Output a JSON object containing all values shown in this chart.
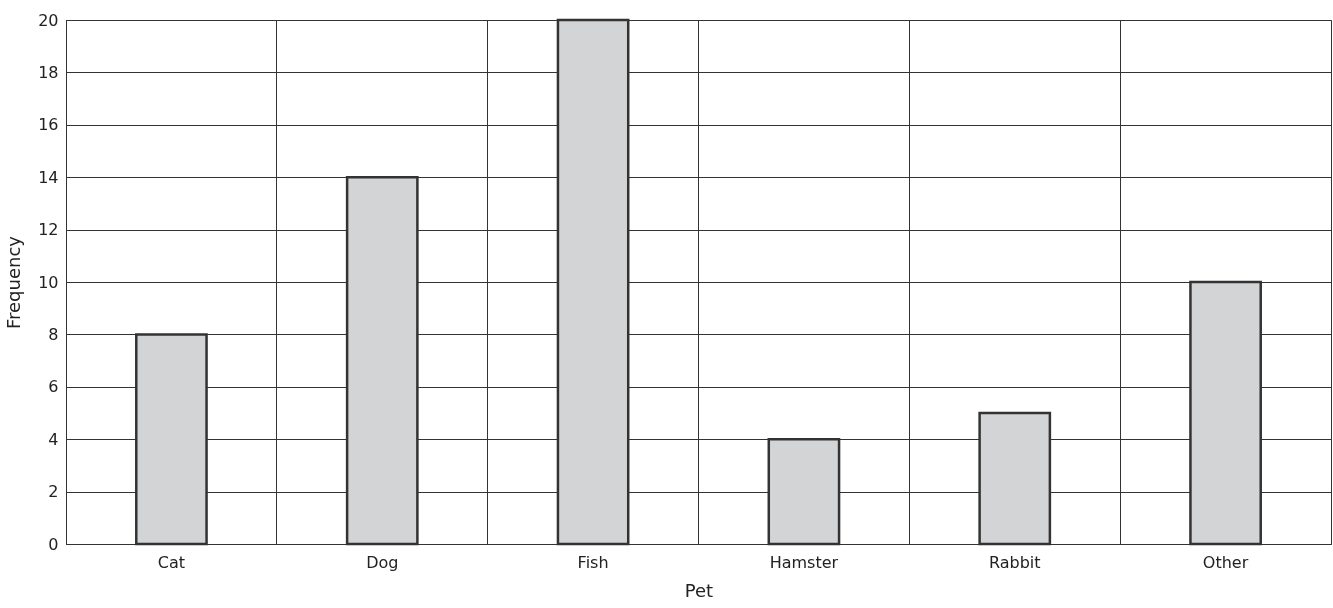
{
  "chart_data": {
    "type": "bar",
    "xlabel": "Pet",
    "ylabel": "Frequency",
    "categories": [
      "Cat",
      "Dog",
      "Fish",
      "Hamster",
      "Rabbit",
      "Other"
    ],
    "values": [
      8,
      14,
      20,
      4,
      5,
      10
    ],
    "color": "#d3d4d6",
    "ylim": [
      0,
      20
    ],
    "yticks": [
      0,
      2,
      4,
      6,
      8,
      10,
      12,
      14,
      16,
      18,
      20
    ],
    "grid": true
  }
}
